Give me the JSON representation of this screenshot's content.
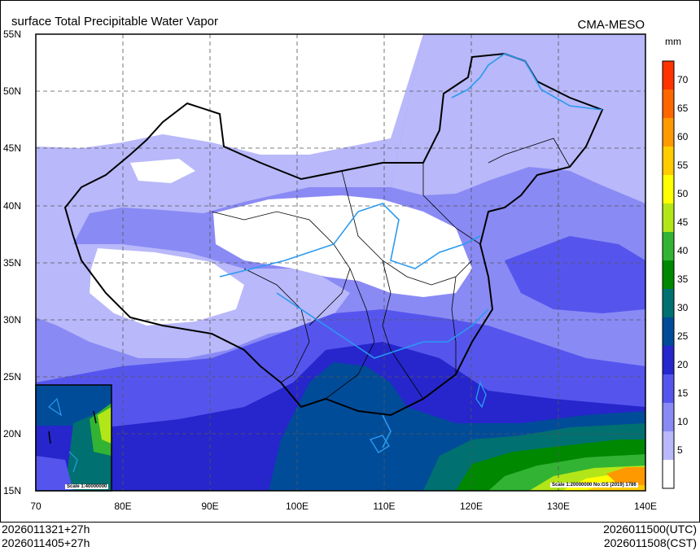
{
  "header": {
    "title": "surface Total Precipitable Water Vapor",
    "source": "CMA-MESO"
  },
  "map": {
    "lat_labels": [
      "55N",
      "50N",
      "45N",
      "40N",
      "35N",
      "30N",
      "25N",
      "20N",
      "15N"
    ],
    "lon_labels": [
      "70",
      "80E",
      "90E",
      "100E",
      "110E",
      "120E",
      "130E",
      "140E"
    ],
    "scale_main": "Scale 1:20000000 No:GS (2019) 1786",
    "scale_inset": "Scale 1:40000000"
  },
  "colorbar": {
    "unit": "mm",
    "levels": [
      "70",
      "65",
      "60",
      "55",
      "50",
      "45",
      "40",
      "35",
      "30",
      "25",
      "20",
      "15",
      "10",
      "5"
    ],
    "colors": [
      "#ff3300",
      "#ff6600",
      "#ff9900",
      "#ffcc00",
      "#ffff00",
      "#b3e619",
      "#33b333",
      "#008800",
      "#007070",
      "#004c99",
      "#2626cc",
      "#5555ee",
      "#8a8af5",
      "#b8b8fa",
      "#ffffff"
    ]
  },
  "footer": {
    "init_utc": "2026011321+27h",
    "init_cst": "2026011405+27h",
    "valid_utc": "2026011500(UTC)",
    "valid_cst": "2026011508(CST)"
  }
}
